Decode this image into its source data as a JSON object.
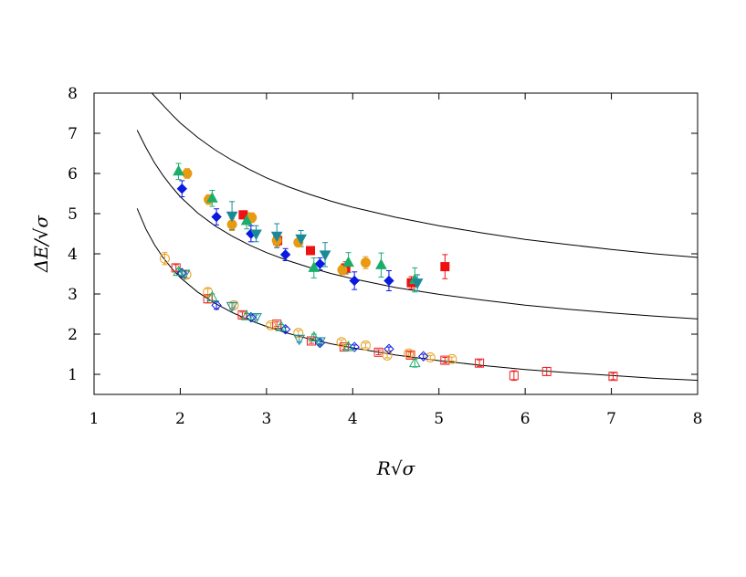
{
  "chart_data": {
    "type": "scatter",
    "xlabel": "R√σ",
    "ylabel": "ΔE/√σ",
    "xlim": [
      1,
      8
    ],
    "ylim": [
      0.5,
      8
    ],
    "xticks": [
      1,
      2,
      3,
      4,
      5,
      6,
      7,
      8
    ],
    "yticks": [
      1,
      2,
      3,
      4,
      5,
      6,
      7,
      8
    ],
    "grid": false,
    "legend": "none",
    "curves": [
      {
        "x": [
          1.5,
          1.6,
          1.7,
          1.8,
          1.9,
          2.0,
          2.2,
          2.4,
          2.6,
          2.8,
          3.0,
          3.25,
          3.5,
          3.75,
          4.0,
          4.5,
          5.0,
          5.5,
          6.0,
          6.5,
          7.0,
          7.5,
          8.0
        ],
        "y": [
          5.13,
          4.62,
          4.23,
          3.91,
          3.64,
          3.41,
          3.05,
          2.77,
          2.54,
          2.35,
          2.19,
          2.02,
          1.88,
          1.76,
          1.66,
          1.48,
          1.34,
          1.22,
          1.12,
          1.04,
          0.97,
          0.9,
          0.85
        ]
      },
      {
        "x": [
          1.5,
          1.6,
          1.7,
          1.8,
          1.9,
          2.0,
          2.2,
          2.4,
          2.6,
          2.8,
          3.0,
          3.25,
          3.5,
          3.75,
          4.0,
          4.5,
          5.0,
          5.5,
          6.0,
          6.5,
          7.0,
          7.5,
          8.0
        ],
        "y": [
          7.08,
          6.65,
          6.27,
          5.95,
          5.67,
          5.42,
          5.02,
          4.7,
          4.44,
          4.22,
          4.03,
          3.83,
          3.66,
          3.51,
          3.38,
          3.16,
          2.99,
          2.85,
          2.72,
          2.62,
          2.53,
          2.45,
          2.38
        ]
      },
      {
        "x": [
          1.67,
          1.8,
          1.9,
          2.0,
          2.2,
          2.4,
          2.6,
          2.8,
          3.0,
          3.25,
          3.5,
          3.75,
          4.0,
          4.5,
          5.0,
          5.5,
          6.0,
          6.5,
          7.0,
          7.5,
          8.0
        ],
        "y": [
          8.0,
          7.7,
          7.47,
          7.26,
          6.9,
          6.59,
          6.33,
          6.1,
          5.89,
          5.67,
          5.48,
          5.31,
          5.16,
          4.91,
          4.7,
          4.52,
          4.36,
          4.23,
          4.11,
          4.0,
          3.91
        ]
      }
    ],
    "series": [
      {
        "marker": "square",
        "filled": false,
        "color": "#ee2222",
        "points": [
          [
            1.95,
            3.65,
            0.08
          ],
          [
            2.32,
            2.88,
            0.1
          ],
          [
            2.72,
            2.48,
            0.07
          ],
          [
            3.12,
            2.25,
            0.06
          ],
          [
            3.52,
            1.83,
            0.06
          ],
          [
            3.9,
            1.68,
            0.06
          ],
          [
            4.3,
            1.55,
            0.06
          ],
          [
            4.67,
            1.48,
            0.07
          ],
          [
            5.07,
            1.35,
            0.07
          ],
          [
            5.47,
            1.28,
            0.08
          ],
          [
            5.87,
            0.97,
            0.12
          ],
          [
            6.25,
            1.07,
            0.1
          ],
          [
            7.02,
            0.95,
            0.08
          ]
        ]
      },
      {
        "marker": "circle",
        "filled": false,
        "color": "#e8a020",
        "points": [
          [
            1.82,
            3.88,
            0.15
          ],
          [
            2.07,
            3.48,
            0.08
          ],
          [
            2.32,
            3.05,
            0.08
          ],
          [
            2.62,
            2.72,
            0.06
          ],
          [
            3.05,
            2.22,
            0.06
          ],
          [
            3.37,
            2.03,
            0.06
          ],
          [
            3.87,
            1.8,
            0.06
          ],
          [
            4.15,
            1.72,
            0.06
          ],
          [
            4.4,
            1.47,
            0.06
          ],
          [
            4.65,
            1.52,
            0.05
          ],
          [
            4.9,
            1.42,
            0.05
          ],
          [
            5.15,
            1.38,
            0.05
          ]
        ]
      },
      {
        "marker": "diamond",
        "filled": false,
        "color": "#0a1ae0",
        "points": [
          [
            2.02,
            3.52,
            0.07
          ],
          [
            2.42,
            2.72,
            0.1
          ],
          [
            2.82,
            2.42,
            0.06
          ],
          [
            3.22,
            2.12,
            0.06
          ],
          [
            3.62,
            1.78,
            0.05
          ],
          [
            4.02,
            1.68,
            0.05
          ],
          [
            4.42,
            1.63,
            0.05
          ],
          [
            4.82,
            1.45,
            0.05
          ]
        ]
      },
      {
        "marker": "triangle-up",
        "filled": false,
        "color": "#1aae6a",
        "points": [
          [
            1.98,
            3.55,
            0.08
          ],
          [
            2.37,
            2.92,
            0.08
          ],
          [
            2.77,
            2.45,
            0.06
          ],
          [
            3.17,
            2.18,
            0.06
          ],
          [
            3.55,
            1.92,
            0.08
          ],
          [
            3.95,
            1.68,
            0.06
          ],
          [
            4.72,
            1.28,
            0.1
          ]
        ]
      },
      {
        "marker": "triangle-down",
        "filled": false,
        "color": "#1a8a9a",
        "points": [
          [
            2.05,
            3.5,
            0.08
          ],
          [
            2.6,
            2.7,
            0.08
          ],
          [
            2.88,
            2.42,
            0.06
          ],
          [
            3.38,
            1.88,
            0.08
          ],
          [
            3.62,
            1.82,
            0.06
          ]
        ]
      },
      {
        "marker": "square",
        "filled": true,
        "color": "#ee1111",
        "points": [
          [
            2.73,
            4.97,
            0.1
          ],
          [
            3.13,
            4.33,
            0.12
          ],
          [
            3.51,
            4.08,
            0.1
          ],
          [
            3.92,
            3.65,
            0.15
          ],
          [
            4.68,
            3.28,
            0.15
          ],
          [
            5.07,
            3.68,
            0.3
          ]
        ]
      },
      {
        "marker": "circle",
        "filled": true,
        "color": "#e89a10",
        "points": [
          [
            2.08,
            6.0,
            0.12
          ],
          [
            2.33,
            5.35,
            0.12
          ],
          [
            2.6,
            4.73,
            0.15
          ],
          [
            2.83,
            4.9,
            0.12
          ],
          [
            3.12,
            4.33,
            0.15
          ],
          [
            3.37,
            4.28,
            0.1
          ],
          [
            3.88,
            3.6,
            0.12
          ],
          [
            4.15,
            3.78,
            0.15
          ]
        ]
      },
      {
        "marker": "diamond",
        "filled": true,
        "color": "#0a1ae0",
        "points": [
          [
            2.02,
            5.62,
            0.2
          ],
          [
            2.42,
            4.92,
            0.2
          ],
          [
            2.82,
            4.5,
            0.2
          ],
          [
            3.22,
            3.98,
            0.15
          ],
          [
            3.62,
            3.75,
            0.15
          ],
          [
            4.02,
            3.33,
            0.22
          ],
          [
            4.42,
            3.33,
            0.25
          ]
        ]
      },
      {
        "marker": "triangle-up",
        "filled": true,
        "color": "#1aae6a",
        "points": [
          [
            1.98,
            6.05,
            0.2
          ],
          [
            2.37,
            5.38,
            0.2
          ],
          [
            2.77,
            4.82,
            0.2
          ],
          [
            3.55,
            3.65,
            0.25
          ],
          [
            3.95,
            3.78,
            0.25
          ],
          [
            4.33,
            3.72,
            0.3
          ],
          [
            4.72,
            3.35,
            0.3
          ]
        ]
      },
      {
        "marker": "triangle-down",
        "filled": true,
        "color": "#1a8a9a",
        "points": [
          [
            2.6,
            4.95,
            0.35
          ],
          [
            2.88,
            4.5,
            0.2
          ],
          [
            3.12,
            4.45,
            0.3
          ],
          [
            3.4,
            4.38,
            0.2
          ],
          [
            3.68,
            3.98,
            0.3
          ],
          [
            4.75,
            3.28,
            0.2
          ]
        ]
      }
    ]
  }
}
